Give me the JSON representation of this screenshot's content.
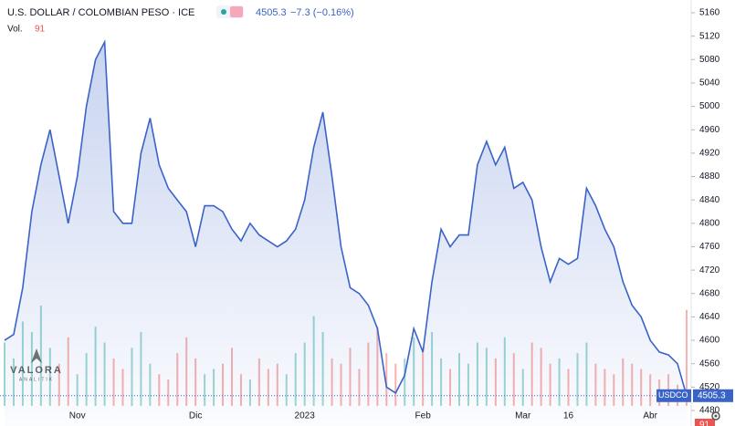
{
  "chart_data": {
    "type": "area",
    "title": "U.S. DOLLAR / COLOMBIAN PESO · ICE",
    "change": "−7.3 (−0.16%)",
    "volume_label": "Vol.",
    "symbol": "USDCO",
    "watermark": "VALORA",
    "watermark_sub": "ANALITIK",
    "color": "#3a63c8",
    "categories": [
      null,
      null,
      null,
      null,
      null,
      null,
      null,
      null,
      "Nov",
      null,
      null,
      null,
      null,
      null,
      null,
      null,
      null,
      null,
      null,
      null,
      null,
      "Dic",
      null,
      null,
      null,
      null,
      null,
      null,
      null,
      null,
      null,
      null,
      null,
      "2023",
      null,
      null,
      null,
      null,
      null,
      null,
      null,
      null,
      null,
      null,
      null,
      null,
      "Feb",
      null,
      null,
      null,
      null,
      null,
      null,
      null,
      null,
      null,
      null,
      "Mar",
      null,
      null,
      null,
      null,
      "16",
      null,
      null,
      null,
      null,
      null,
      null,
      null,
      null,
      "Abr",
      null,
      null,
      null,
      null
    ],
    "values": [
      4600,
      4610,
      4690,
      4820,
      4900,
      4960,
      4880,
      4800,
      4880,
      5000,
      5080,
      5110,
      4820,
      4800,
      4800,
      4920,
      4980,
      4900,
      4860,
      4840,
      4820,
      4760,
      4830,
      4830,
      4820,
      4790,
      4770,
      4800,
      4780,
      4770,
      4760,
      4770,
      4790,
      4840,
      4930,
      4990,
      4880,
      4760,
      4690,
      4680,
      4660,
      4620,
      4520,
      4510,
      4540,
      4620,
      4580,
      4700,
      4790,
      4760,
      4780,
      4780,
      4900,
      4940,
      4900,
      4930,
      4860,
      4870,
      4840,
      4760,
      4700,
      4740,
      4730,
      4740,
      4860,
      4830,
      4790,
      4760,
      4700,
      4660,
      4640,
      4600,
      4580,
      4575,
      4560,
      4505.3
    ],
    "volume": [
      60,
      45,
      80,
      70,
      95,
      55,
      40,
      65,
      30,
      50,
      75,
      60,
      45,
      35,
      55,
      70,
      40,
      30,
      25,
      50,
      65,
      45,
      30,
      35,
      40,
      55,
      30,
      25,
      45,
      35,
      40,
      30,
      50,
      60,
      85,
      70,
      45,
      40,
      55,
      35,
      60,
      75,
      50,
      40,
      45,
      65,
      55,
      70,
      45,
      35,
      50,
      40,
      60,
      55,
      45,
      65,
      50,
      35,
      60,
      55,
      40,
      45,
      35,
      50,
      60,
      40,
      35,
      30,
      45,
      40,
      35,
      30,
      25,
      30,
      20,
      91
    ],
    "ylim": [
      4480,
      5160
    ],
    "yticks": [
      4480,
      4520,
      4560,
      4600,
      4640,
      4680,
      4720,
      4760,
      4800,
      4840,
      4880,
      4920,
      4960,
      5000,
      5040,
      5080,
      5120,
      5160
    ]
  }
}
